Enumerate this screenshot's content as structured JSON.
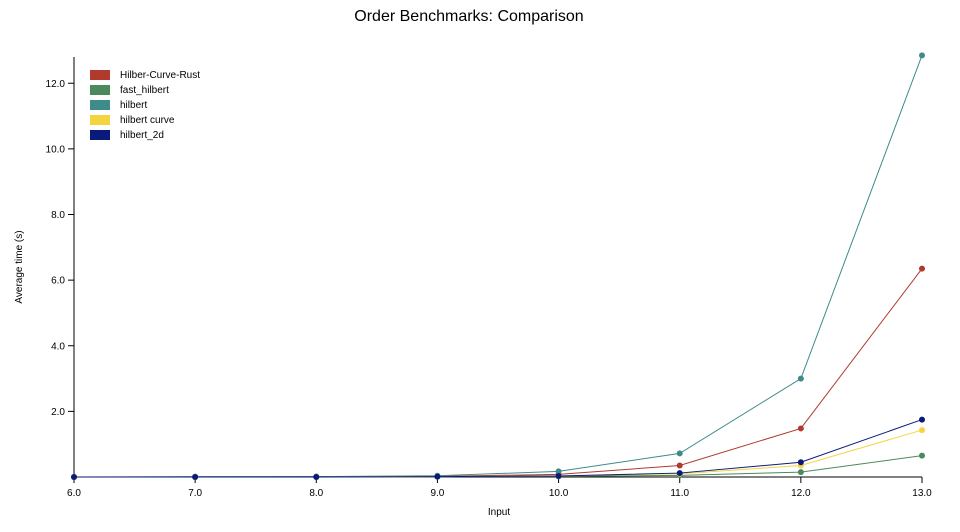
{
  "chart_data": {
    "type": "line",
    "title": "Order Benchmarks: Comparison",
    "xlabel": "Input",
    "ylabel": "Average time (s)",
    "xlim": [
      6.0,
      13.0
    ],
    "ylim": [
      0,
      12.8
    ],
    "x_ticks": [
      "6.0",
      "7.0",
      "8.0",
      "9.0",
      "10.0",
      "11.0",
      "12.0",
      "13.0"
    ],
    "y_ticks": [
      "2.0",
      "4.0",
      "6.0",
      "8.0",
      "10.0",
      "12.0"
    ],
    "grid": false,
    "legend_position": "top-left",
    "x": [
      6,
      7,
      8,
      9,
      10,
      11,
      12,
      13
    ],
    "series": [
      {
        "name": "Hilber-Curve-Rust",
        "color": "#b03a2e",
        "values": [
          0.0,
          0.0,
          0.01,
          0.02,
          0.08,
          0.35,
          1.48,
          6.35
        ]
      },
      {
        "name": "fast_hilbert",
        "color": "#4a8a5c",
        "values": [
          0.0,
          0.0,
          0.0,
          0.01,
          0.02,
          0.05,
          0.15,
          0.65
        ]
      },
      {
        "name": "hilbert",
        "color": "#3d8b8a",
        "values": [
          0.0,
          0.01,
          0.01,
          0.04,
          0.17,
          0.72,
          3.0,
          12.85
        ]
      },
      {
        "name": "hilbert curve",
        "color": "#f5d442",
        "values": [
          0.0,
          0.0,
          0.0,
          0.01,
          0.03,
          0.1,
          0.35,
          1.43
        ]
      },
      {
        "name": "hilbert_2d",
        "color": "#0a1a7a",
        "values": [
          0.0,
          0.0,
          0.0,
          0.01,
          0.03,
          0.12,
          0.45,
          1.75
        ]
      }
    ]
  }
}
